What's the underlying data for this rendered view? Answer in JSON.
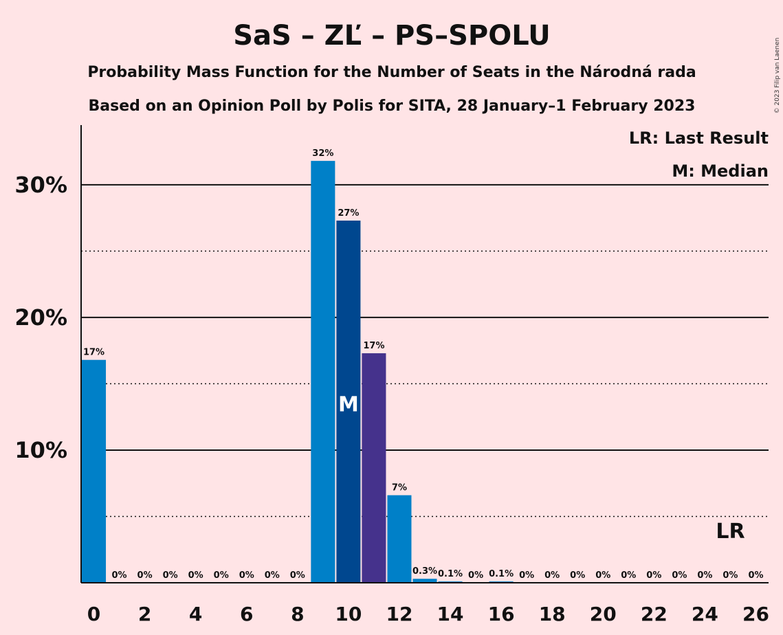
{
  "chart_data": {
    "type": "bar",
    "title": "SaS – ZĽ – PS–SPOLU",
    "subtitle": "Probability Mass Function for the Number of Seats in the Národná rada",
    "subtitle2": "Based on an Opinion Poll by Polis for SITA, 28 January–1 February 2023",
    "copyright": "© 2023 Filip van Laenen",
    "x": [
      0,
      1,
      2,
      3,
      4,
      5,
      6,
      7,
      8,
      9,
      10,
      11,
      12,
      13,
      14,
      15,
      16,
      17,
      18,
      19,
      20,
      21,
      22,
      23,
      24,
      25,
      26
    ],
    "values": [
      16.8,
      0,
      0,
      0,
      0,
      0,
      0,
      0,
      0,
      31.8,
      27.3,
      17.3,
      6.6,
      0.3,
      0.1,
      0,
      0.1,
      0,
      0,
      0,
      0,
      0,
      0,
      0,
      0,
      0,
      0
    ],
    "value_labels": [
      "17%",
      "0%",
      "0%",
      "0%",
      "0%",
      "0%",
      "0%",
      "0%",
      "0%",
      "32%",
      "27%",
      "17%",
      "7%",
      "0.3%",
      "0.1%",
      "0%",
      "0.1%",
      "0%",
      "0%",
      "0%",
      "0%",
      "0%",
      "0%",
      "0%",
      "0%",
      "0%",
      "0%"
    ],
    "xticks": [
      "0",
      "2",
      "4",
      "6",
      "8",
      "10",
      "12",
      "14",
      "16",
      "18",
      "20",
      "22",
      "24",
      "26"
    ],
    "yticks": [
      "10%",
      "20%",
      "30%"
    ],
    "ylim": [
      0,
      34.5
    ],
    "median": 10,
    "median_label": "M",
    "last_result": 25,
    "last_result_label": "LR",
    "legend": [
      "LR: Last Result",
      "M: Median"
    ],
    "colors": {
      "background": "#FFE4E6",
      "bar": "#0080C8",
      "median_bar": "#00478F",
      "special_bar": "#45328C"
    },
    "special_bar_index": 11
  }
}
